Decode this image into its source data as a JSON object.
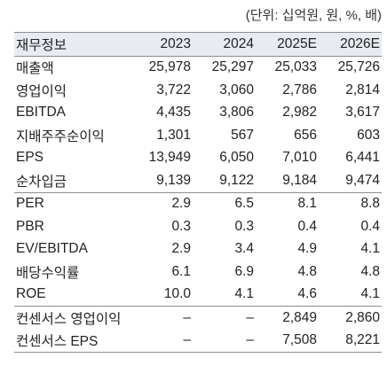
{
  "unit_note": "(단위: 십억원, 원, %, 배)",
  "header": [
    "재무정보",
    "2023",
    "2024",
    "2025E",
    "2026E"
  ],
  "rows": [
    [
      "매출액",
      "25,978",
      "25,297",
      "25,033",
      "25,726"
    ],
    [
      "영업이익",
      "3,722",
      "3,060",
      "2,786",
      "2,814"
    ],
    [
      "EBITDA",
      "4,435",
      "3,806",
      "2,982",
      "3,617"
    ],
    [
      "지배주주순이익",
      "1,301",
      "567",
      "656",
      "603"
    ],
    [
      "EPS",
      "13,949",
      "6,050",
      "7,010",
      "6,441"
    ],
    [
      "순차입금",
      "9,139",
      "9,122",
      "9,184",
      "9,474"
    ],
    [
      "PER",
      "2.9",
      "6.5",
      "8.1",
      "8.8"
    ],
    [
      "PBR",
      "0.3",
      "0.3",
      "0.4",
      "0.4"
    ],
    [
      "EV/EBITDA",
      "2.9",
      "3.4",
      "4.9",
      "4.1"
    ],
    [
      "배당수익률",
      "6.1",
      "6.9",
      "4.8",
      "4.8"
    ],
    [
      "ROE",
      "10.0",
      "4.1",
      "4.6",
      "4.1"
    ],
    [
      "컨센서스 영업이익",
      "–",
      "–",
      "2,849",
      "2,860"
    ],
    [
      "컨센서스 EPS",
      "–",
      "–",
      "7,508",
      "8,221"
    ]
  ]
}
